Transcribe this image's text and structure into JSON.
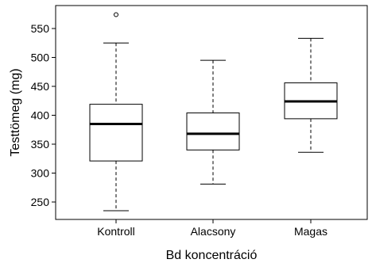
{
  "chart_data": {
    "type": "boxplot",
    "title": "",
    "xlabel": "Bd koncentráció",
    "ylabel": "Testtömeg (mg)",
    "ylim": [
      225,
      580
    ],
    "yticks": [
      250,
      300,
      350,
      400,
      450,
      500,
      550
    ],
    "grid": false,
    "categories": [
      "Kontroll",
      "Alacsony",
      "Magas"
    ],
    "boxes": [
      {
        "min": 235,
        "q1": 321,
        "median": 385,
        "q3": 419,
        "max": 525,
        "outliers": [
          574
        ]
      },
      {
        "min": 281,
        "q1": 340,
        "median": 368,
        "q3": 404,
        "max": 495,
        "outliers": []
      },
      {
        "min": 336,
        "q1": 394,
        "median": 424,
        "q3": 456,
        "max": 533,
        "outliers": []
      }
    ]
  }
}
